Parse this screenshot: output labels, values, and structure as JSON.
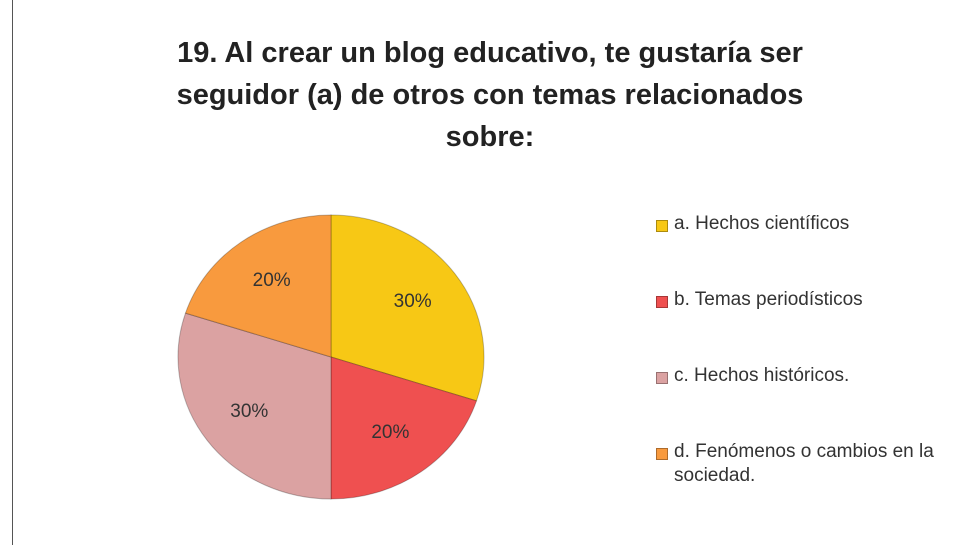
{
  "chart_data": {
    "type": "pie",
    "title": "19. Al crear un blog educativo, te gustaría ser seguidor (a) de otros con temas relacionados sobre:",
    "categories": [
      "a. Hechos científicos",
      "b. Temas periodísticos",
      "c. Hechos históricos.",
      "d. Fenómenos o cambios en la sociedad."
    ],
    "values": [
      30,
      20,
      30,
      20
    ],
    "value_labels": [
      "30%",
      "20%",
      "30%",
      "20%"
    ],
    "colors": [
      "#f7c815",
      "#ef5050",
      "#dba2a2",
      "#f89a3e"
    ],
    "legend": "right"
  }
}
